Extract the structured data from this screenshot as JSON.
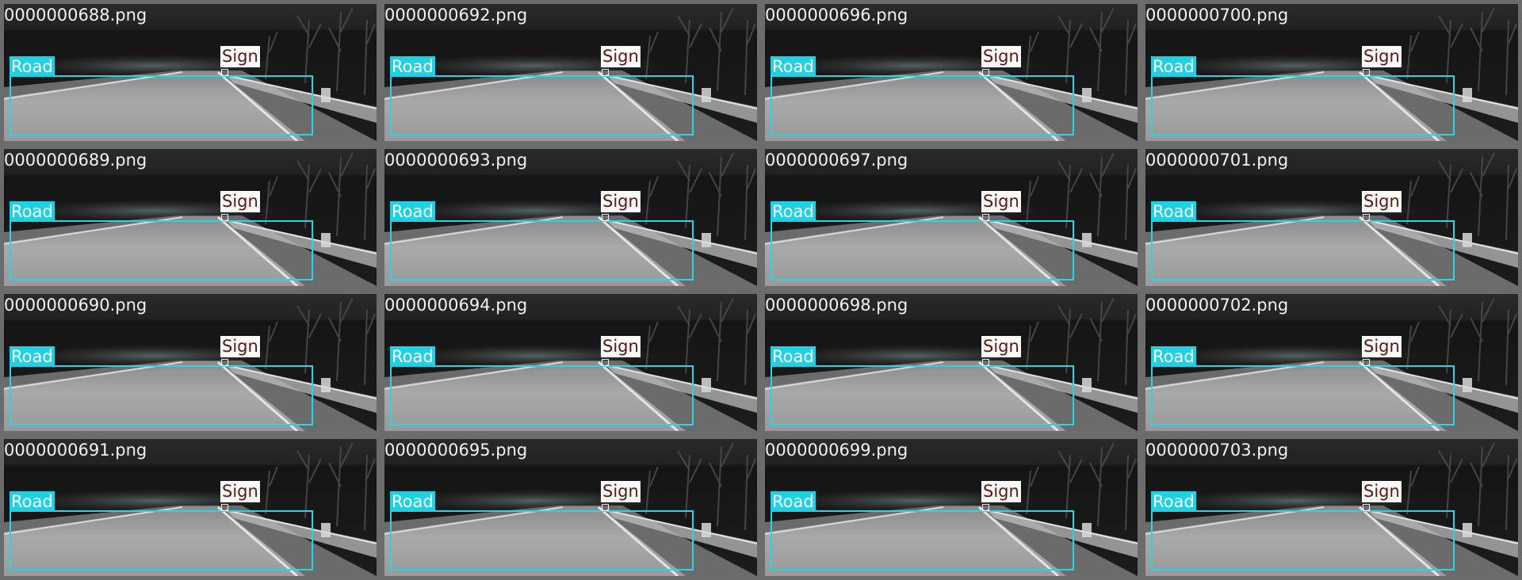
{
  "grid": {
    "columns": 4,
    "rows": 4,
    "tiles": [
      {
        "filename": "0000000688.png",
        "labels": {
          "road": "Road",
          "sign": "Sign"
        }
      },
      {
        "filename": "0000000692.png",
        "labels": {
          "road": "Road",
          "sign": "Sign"
        }
      },
      {
        "filename": "0000000696.png",
        "labels": {
          "road": "Road",
          "sign": "Sign"
        }
      },
      {
        "filename": "0000000700.png",
        "labels": {
          "road": "Road",
          "sign": "Sign"
        }
      },
      {
        "filename": "0000000689.png",
        "labels": {
          "road": "Road",
          "sign": "Sign"
        }
      },
      {
        "filename": "0000000693.png",
        "labels": {
          "road": "Road",
          "sign": "Sign"
        }
      },
      {
        "filename": "0000000697.png",
        "labels": {
          "road": "Road",
          "sign": "Sign"
        }
      },
      {
        "filename": "0000000701.png",
        "labels": {
          "road": "Road",
          "sign": "Sign"
        }
      },
      {
        "filename": "0000000690.png",
        "labels": {
          "road": "Road",
          "sign": "Sign"
        }
      },
      {
        "filename": "0000000694.png",
        "labels": {
          "road": "Road",
          "sign": "Sign"
        }
      },
      {
        "filename": "0000000698.png",
        "labels": {
          "road": "Road",
          "sign": "Sign"
        }
      },
      {
        "filename": "0000000702.png",
        "labels": {
          "road": "Road",
          "sign": "Sign"
        }
      },
      {
        "filename": "0000000691.png",
        "labels": {
          "road": "Road",
          "sign": "Sign"
        }
      },
      {
        "filename": "0000000695.png",
        "labels": {
          "road": "Road",
          "sign": "Sign"
        }
      },
      {
        "filename": "0000000699.png",
        "labels": {
          "road": "Road",
          "sign": "Sign"
        }
      },
      {
        "filename": "0000000703.png",
        "labels": {
          "road": "Road",
          "sign": "Sign"
        }
      }
    ]
  },
  "colors": {
    "tile_border": "#6c6c6c",
    "road_box": "#29d4e6",
    "road_label_bg": "#1fd1e4",
    "sign_label_bg": "#fbfaf8",
    "sign_label_text": "#5c1616"
  }
}
